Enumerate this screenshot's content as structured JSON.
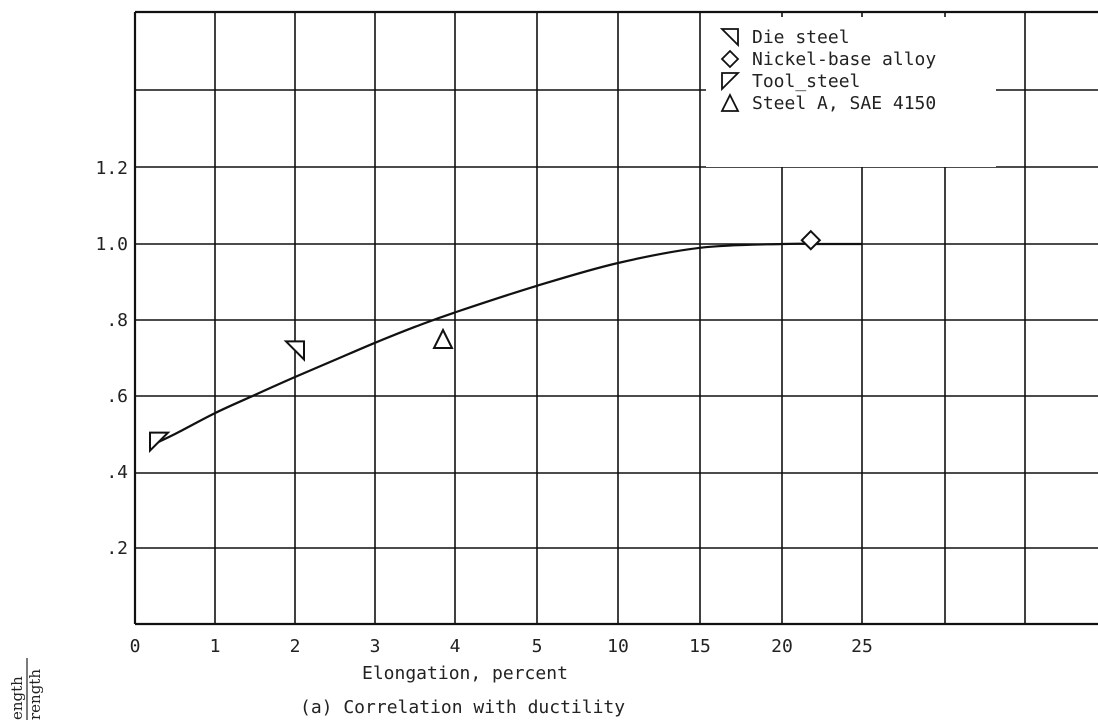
{
  "chart_data": {
    "type": "scatter",
    "title": "",
    "xlabel": "Elongation, percent",
    "ylabel": "",
    "ylabel_fragments": [
      "ength",
      "rength"
    ],
    "caption": "(a) Correlation with ductility",
    "xticks": [
      "0",
      "1",
      "2",
      "3",
      "4",
      "5",
      "10",
      "15",
      "20",
      "25"
    ],
    "yticks": [
      ".2",
      ".4",
      ".6",
      ".8",
      "1.0",
      "1.2"
    ],
    "ylim": [
      0,
      1.6
    ],
    "grid": true,
    "legend_position": "top-right",
    "series": [
      {
        "name": "Die steel",
        "marker": "triangle-left",
        "points": [
          {
            "x": 2,
            "y": 0.72
          }
        ]
      },
      {
        "name": "Nickel-base alloy",
        "marker": "diamond",
        "points": [
          {
            "x": 21.8,
            "y": 1.01
          }
        ]
      },
      {
        "name": "Tool_steel",
        "marker": "triangle-down",
        "points": [
          {
            "x": 0.3,
            "y": 0.48
          }
        ]
      },
      {
        "name": "Steel A, SAE 4150",
        "marker": "triangle-up",
        "points": [
          {
            "x": 3.85,
            "y": 0.75
          }
        ]
      }
    ],
    "curve": {
      "name": "",
      "points": [
        {
          "x": 0.2,
          "y": 0.47
        },
        {
          "x": 0.5,
          "y": 0.5
        },
        {
          "x": 1,
          "y": 0.555
        },
        {
          "x": 1.5,
          "y": 0.603
        },
        {
          "x": 2,
          "y": 0.65
        },
        {
          "x": 2.5,
          "y": 0.695
        },
        {
          "x": 3,
          "y": 0.74
        },
        {
          "x": 3.5,
          "y": 0.782
        },
        {
          "x": 4,
          "y": 0.82
        },
        {
          "x": 5,
          "y": 0.89
        },
        {
          "x": 10,
          "y": 0.95
        },
        {
          "x": 15,
          "y": 0.99
        },
        {
          "x": 20,
          "y": 1.0
        },
        {
          "x": 22.5,
          "y": 1.0
        },
        {
          "x": 25,
          "y": 1.0
        }
      ]
    }
  }
}
